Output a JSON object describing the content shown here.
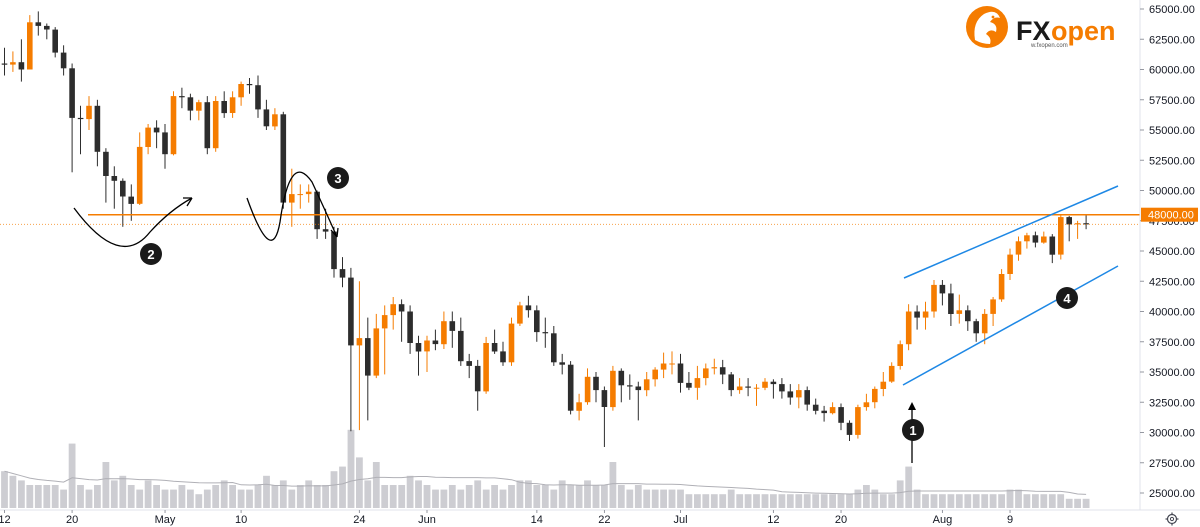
{
  "chart_data": {
    "type": "candlestick",
    "y_axis": {
      "ticks": [
        "65000.00",
        "62500.00",
        "60000.00",
        "57500.00",
        "55000.00",
        "52500.00",
        "50000.00",
        "47500.00",
        "45000.00",
        "42500.00",
        "40000.00",
        "37500.00",
        "35000.00",
        "32500.00",
        "30000.00",
        "27500.00",
        "25000.00"
      ],
      "range": [
        24000,
        65500
      ]
    },
    "x_axis": {
      "labels": [
        {
          "text": "12",
          "day": 0
        },
        {
          "text": "20",
          "day": 8
        },
        {
          "text": "May",
          "day": 19
        },
        {
          "text": "10",
          "day": 28
        },
        {
          "text": "24",
          "day": 42
        },
        {
          "text": "Jun",
          "day": 50
        },
        {
          "text": "14",
          "day": 63
        },
        {
          "text": "22",
          "day": 71
        },
        {
          "text": "Jul",
          "day": 80
        },
        {
          "text": "12",
          "day": 91
        },
        {
          "text": "20",
          "day": 99
        },
        {
          "text": "Aug",
          "day": 111
        },
        {
          "text": "9",
          "day": 119
        }
      ],
      "range_days": [
        -2,
        127
      ]
    },
    "horizontal_line": {
      "price": 48000,
      "label": "48000.00",
      "color": "#f57c00"
    },
    "last_price": 47200,
    "candles": [
      [
        0,
        60500,
        60400,
        61800,
        59500
      ],
      [
        1,
        60400,
        60600,
        61500,
        59800
      ],
      [
        2,
        60600,
        60000,
        62500,
        59000
      ],
      [
        3,
        60000,
        63900,
        64500,
        60000
      ],
      [
        4,
        63900,
        63600,
        64800,
        62800
      ],
      [
        5,
        63600,
        63300,
        63800,
        62500
      ],
      [
        6,
        63300,
        61400,
        63500,
        61000
      ],
      [
        7,
        61400,
        60100,
        62000,
        59500
      ],
      [
        8,
        60100,
        56000,
        60500,
        51500
      ],
      [
        9,
        56000,
        55900,
        57000,
        53000
      ],
      [
        10,
        55900,
        57000,
        57800,
        55000
      ],
      [
        11,
        57000,
        53200,
        57500,
        52000
      ],
      [
        12,
        53200,
        51200,
        53500,
        49000
      ],
      [
        13,
        51200,
        50800,
        52000,
        48500
      ],
      [
        14,
        50800,
        49500,
        51000,
        47000
      ],
      [
        15,
        49500,
        48900,
        50500,
        47500
      ],
      [
        16,
        48900,
        53600,
        54800,
        48800
      ],
      [
        17,
        53600,
        55200,
        55500,
        53000
      ],
      [
        18,
        55200,
        54800,
        55800,
        53500
      ],
      [
        19,
        54800,
        53000,
        55500,
        51800
      ],
      [
        20,
        53000,
        57800,
        58200,
        52900
      ],
      [
        21,
        57800,
        57700,
        58500,
        56800
      ],
      [
        22,
        57700,
        56600,
        58000,
        55800
      ],
      [
        23,
        56600,
        57300,
        57500,
        55800
      ],
      [
        24,
        57300,
        53500,
        57800,
        53000
      ],
      [
        25,
        53500,
        57400,
        57800,
        53200
      ],
      [
        26,
        57400,
        56400,
        58200,
        56000
      ],
      [
        27,
        56400,
        57700,
        58200,
        56000
      ],
      [
        28,
        57700,
        58800,
        59000,
        57000
      ],
      [
        29,
        58800,
        58700,
        59300,
        58000
      ],
      [
        30,
        58700,
        56700,
        59500,
        56000
      ],
      [
        31,
        56700,
        55300,
        57500,
        55000
      ],
      [
        32,
        55300,
        56300,
        56800,
        55000
      ],
      [
        33,
        56300,
        49000,
        56500,
        48500
      ],
      [
        34,
        49000,
        49700,
        51800,
        47000
      ],
      [
        35,
        49700,
        49700,
        50500,
        48500
      ],
      [
        36,
        49700,
        49900,
        50500,
        49000
      ],
      [
        37,
        49900,
        46800,
        50000,
        46000
      ],
      [
        38,
        46800,
        46600,
        48500,
        46000
      ],
      [
        39,
        46600,
        43500,
        47000,
        42800
      ],
      [
        40,
        43500,
        42800,
        44500,
        42000
      ],
      [
        41,
        42800,
        37200,
        43600,
        30100
      ],
      [
        42,
        37200,
        37800,
        42500,
        30200
      ],
      [
        43,
        37800,
        34700,
        39500,
        31000
      ],
      [
        44,
        34700,
        38600,
        39800,
        34500
      ],
      [
        45,
        38600,
        39700,
        40500,
        34800
      ],
      [
        46,
        39700,
        40600,
        41200,
        38500
      ],
      [
        47,
        40600,
        40000,
        41000,
        37500
      ],
      [
        48,
        40000,
        37400,
        40500,
        36500
      ],
      [
        49,
        37400,
        36700,
        38000,
        34700
      ],
      [
        50,
        36700,
        37600,
        38000,
        35000
      ],
      [
        51,
        37600,
        37300,
        38500,
        36800
      ],
      [
        52,
        37300,
        39200,
        40000,
        36900
      ],
      [
        53,
        39200,
        38400,
        40000,
        37000
      ],
      [
        54,
        38400,
        35900,
        39500,
        35500
      ],
      [
        55,
        35900,
        35500,
        36500,
        34500
      ],
      [
        56,
        35500,
        33400,
        36000,
        31800
      ],
      [
        57,
        33400,
        37400,
        37900,
        33200
      ],
      [
        58,
        37400,
        36700,
        38500,
        36500
      ],
      [
        59,
        36700,
        35800,
        37500,
        35500
      ],
      [
        60,
        35800,
        39000,
        39500,
        35500
      ],
      [
        61,
        39000,
        40500,
        40800,
        38800
      ],
      [
        62,
        40500,
        40100,
        41300,
        39500
      ],
      [
        63,
        40100,
        38300,
        40500,
        37500
      ],
      [
        64,
        38300,
        38200,
        39500,
        37000
      ],
      [
        65,
        38200,
        35800,
        38800,
        35500
      ],
      [
        66,
        35800,
        35600,
        36500,
        34800
      ],
      [
        67,
        35600,
        31800,
        35900,
        31500
      ],
      [
        68,
        31800,
        32500,
        33200,
        31000
      ],
      [
        69,
        32500,
        34600,
        35300,
        32300
      ],
      [
        70,
        34600,
        33500,
        35000,
        32500
      ],
      [
        71,
        33500,
        32100,
        33800,
        28800
      ],
      [
        72,
        32100,
        35100,
        35500,
        31800
      ],
      [
        73,
        35100,
        33900,
        35300,
        32500
      ],
      [
        74,
        33900,
        33800,
        34800,
        32700
      ],
      [
        75,
        33800,
        33500,
        34200,
        31000
      ],
      [
        76,
        33500,
        34400,
        35000,
        33000
      ],
      [
        77,
        34400,
        35200,
        35400,
        33800
      ],
      [
        78,
        35200,
        35700,
        36600,
        34500
      ],
      [
        79,
        35700,
        35700,
        36700,
        34800
      ],
      [
        80,
        35700,
        34100,
        36500,
        33300
      ],
      [
        81,
        34100,
        33700,
        35000,
        33500
      ],
      [
        82,
        33700,
        34500,
        35500,
        32700
      ],
      [
        83,
        34500,
        35300,
        35700,
        33900
      ],
      [
        84,
        35300,
        35400,
        36100,
        34800
      ],
      [
        85,
        35400,
        34800,
        36000,
        34000
      ],
      [
        86,
        34800,
        33500,
        35000,
        33000
      ],
      [
        87,
        33500,
        33800,
        34500,
        33200
      ],
      [
        88,
        33800,
        33700,
        34500,
        33000
      ],
      [
        89,
        33700,
        33700,
        34000,
        32200
      ],
      [
        90,
        33700,
        34200,
        34500,
        33500
      ],
      [
        91,
        34200,
        34000,
        34400,
        32800
      ],
      [
        92,
        34000,
        33400,
        34500,
        32800
      ],
      [
        93,
        33400,
        32900,
        34000,
        32300
      ],
      [
        94,
        32900,
        33500,
        34000,
        32000
      ],
      [
        95,
        33500,
        32300,
        33800,
        31800
      ],
      [
        96,
        32300,
        31800,
        32800,
        31500
      ],
      [
        97,
        31800,
        31600,
        32200,
        30900
      ],
      [
        98,
        31600,
        32100,
        32500,
        31500
      ],
      [
        99,
        32100,
        30800,
        32400,
        30200
      ],
      [
        100,
        30800,
        29800,
        31000,
        29300
      ],
      [
        101,
        29800,
        32100,
        32300,
        29500
      ],
      [
        102,
        32100,
        32500,
        33200,
        31800
      ],
      [
        103,
        32500,
        33600,
        33800,
        32000
      ],
      [
        104,
        33600,
        34200,
        35000,
        33000
      ],
      [
        105,
        34200,
        35500,
        35800,
        34100
      ],
      [
        106,
        35500,
        37300,
        37600,
        35200
      ],
      [
        107,
        37300,
        40000,
        40600,
        36800
      ],
      [
        108,
        40000,
        39500,
        40500,
        38500
      ],
      [
        109,
        39500,
        40000,
        40800,
        38500
      ],
      [
        110,
        40000,
        42200,
        42600,
        39500
      ],
      [
        111,
        42200,
        41500,
        42600,
        40500
      ],
      [
        112,
        41500,
        39800,
        42300,
        38800
      ],
      [
        113,
        39800,
        40100,
        41400,
        39000
      ],
      [
        114,
        40100,
        39200,
        40500,
        38400
      ],
      [
        115,
        39200,
        38200,
        39400,
        37500
      ],
      [
        116,
        38200,
        39800,
        40200,
        37300
      ],
      [
        117,
        39800,
        41000,
        41200,
        38800
      ],
      [
        118,
        41000,
        43100,
        43500,
        40800
      ],
      [
        119,
        43100,
        44700,
        45200,
        42600
      ],
      [
        120,
        44700,
        45800,
        46200,
        44200
      ],
      [
        121,
        45800,
        46300,
        46500,
        45200
      ],
      [
        122,
        46300,
        45700,
        46600,
        45300
      ],
      [
        123,
        45700,
        46200,
        46600,
        45600
      ],
      [
        124,
        46200,
        44700,
        46400,
        44000
      ],
      [
        125,
        44700,
        47800,
        48000,
        44300
      ],
      [
        126,
        47800,
        47200,
        47900,
        45800
      ],
      [
        127,
        47200,
        47300,
        47500,
        46000
      ],
      [
        128,
        47300,
        47200,
        48000,
        46800
      ]
    ],
    "colors": {
      "up": "#f57c00",
      "down": "#2d2d2d",
      "volume": "#cdcdd2",
      "volume_ma": "#b0b0b6",
      "channel": "#1e88e5",
      "hline": "#f57c00",
      "annotation": "#1a1a1a"
    },
    "volume": [
      8,
      7,
      6,
      5,
      5,
      5,
      5,
      4,
      14,
      5,
      4,
      5,
      10,
      6,
      7,
      5,
      4,
      6,
      5,
      4,
      4,
      5,
      4,
      3,
      4,
      5,
      6,
      5,
      4,
      4,
      5,
      7,
      5,
      6,
      4,
      5,
      6,
      5,
      5,
      8,
      9,
      17,
      11,
      6,
      10,
      5,
      5,
      5,
      7,
      6,
      5,
      4,
      4,
      5,
      4,
      5,
      6,
      4,
      5,
      4,
      5,
      6,
      6,
      5,
      5,
      4,
      6,
      5,
      5,
      6,
      5,
      5,
      10,
      5,
      4,
      5,
      4,
      4,
      4,
      4,
      4,
      3,
      3,
      3,
      3,
      3,
      4,
      3,
      3,
      3,
      3,
      3,
      3,
      3,
      3,
      3,
      3,
      3,
      3,
      3,
      3,
      4,
      5,
      4,
      3,
      3,
      6,
      9,
      4,
      3,
      3,
      3,
      3,
      3,
      3,
      3,
      3,
      3,
      3,
      4,
      4,
      3,
      3,
      3,
      3,
      3,
      2,
      2,
      2
    ],
    "annotations": [
      "1",
      "2",
      "3",
      "4"
    ],
    "logo": {
      "brand_fx": "FX",
      "brand_open": "open",
      "small": "w.fxopen.com"
    }
  }
}
